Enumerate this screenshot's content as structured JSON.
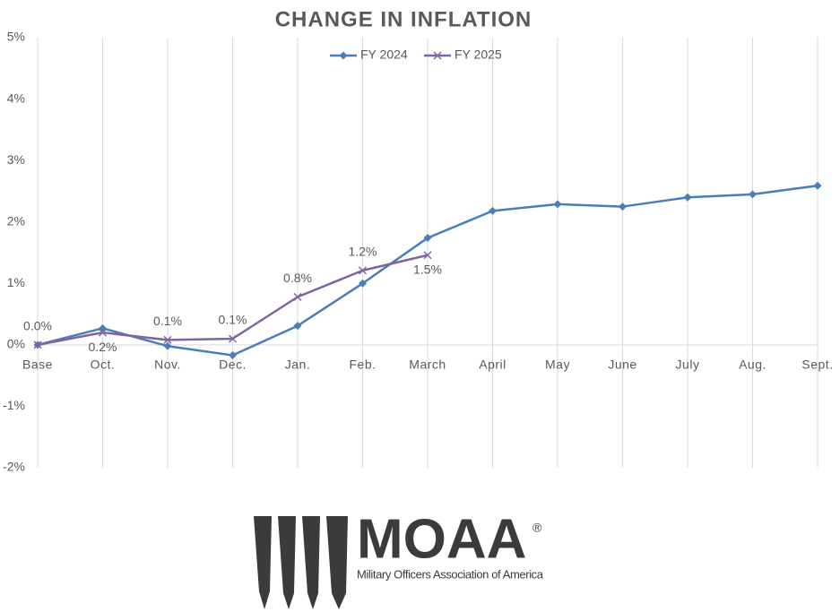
{
  "chart_data": {
    "type": "line",
    "title": "CHANGE IN INFLATION",
    "categories": [
      "Base",
      "Oct.",
      "Nov.",
      "Dec.",
      "Jan.",
      "Feb.",
      "March",
      "April",
      "May",
      "June",
      "July",
      "Aug.",
      "Sept."
    ],
    "series": [
      {
        "name": "FY 2024",
        "color": "#4a7ebb",
        "marker": "diamond",
        "values": [
          0,
          0.27,
          -0.02,
          -0.17,
          0.31,
          1.0,
          1.74,
          2.18,
          2.29,
          2.25,
          2.4,
          2.45,
          2.59
        ]
      },
      {
        "name": "FY 2025",
        "color": "#8064a2",
        "marker": "x",
        "values": [
          0,
          0.2,
          0.08,
          0.1,
          0.78,
          1.21,
          1.46,
          null,
          null,
          null,
          null,
          null,
          null
        ],
        "value_labels": [
          "0.0%",
          "0.2%",
          "0.1%",
          "0.1%",
          "0.8%",
          "1.2%",
          "1.5%",
          null,
          null,
          null,
          null,
          null,
          null
        ]
      }
    ],
    "ylim": [
      -2,
      5
    ],
    "yticks": [
      {
        "value": -2,
        "label": "-2%"
      },
      {
        "value": -1,
        "label": "-1%"
      },
      {
        "value": 0,
        "label": "0%"
      },
      {
        "value": 1,
        "label": "1%"
      },
      {
        "value": 2,
        "label": "2%"
      },
      {
        "value": 3,
        "label": "3%"
      },
      {
        "value": 4,
        "label": "4%"
      },
      {
        "value": 5,
        "label": "5%"
      }
    ],
    "grid": "x",
    "legend": "top"
  },
  "logo": {
    "name": "MOAA",
    "mark": "®",
    "tagline": "Military Officers Association of America"
  }
}
